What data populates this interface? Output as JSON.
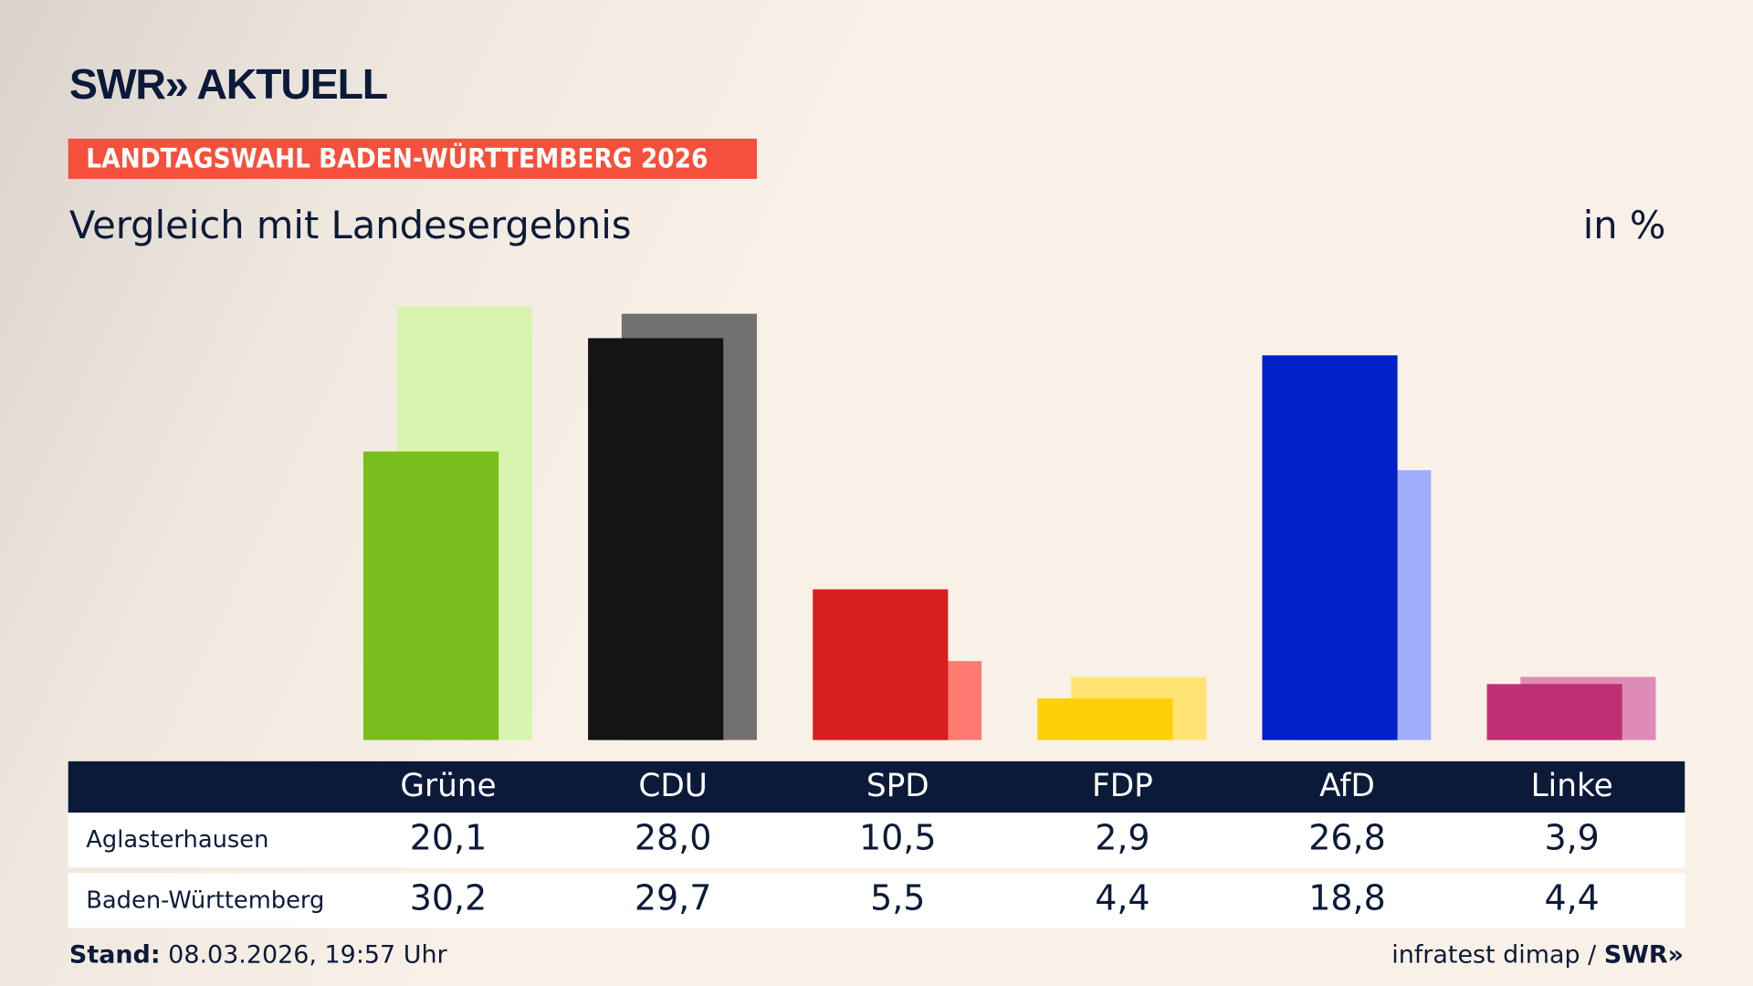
{
  "header": {
    "logo": "SWR» AKTUELL",
    "badge": "LANDTAGSWAHL BADEN-WÜRTTEMBERG 2026",
    "subtitle": "Vergleich mit Landesergebnis",
    "unit": "in %"
  },
  "chart_data": {
    "type": "bar",
    "categories": [
      "Grüne",
      "CDU",
      "SPD",
      "FDP",
      "AfD",
      "Linke"
    ],
    "series": [
      {
        "name": "Aglasterhausen",
        "values": [
          20.1,
          28.0,
          10.5,
          2.9,
          26.8,
          3.9
        ],
        "labels": [
          "20,1",
          "28,0",
          "10,5",
          "2,9",
          "26,8",
          "3,9"
        ],
        "colors": [
          "#78be1c",
          "#141414",
          "#d71f1f",
          "#ffcf0a",
          "#0021c8",
          "#be3075"
        ]
      },
      {
        "name": "Baden-Württemberg",
        "values": [
          30.2,
          29.7,
          5.5,
          4.4,
          18.8,
          4.4
        ],
        "labels": [
          "30,2",
          "29,7",
          "5,5",
          "4,4",
          "18,8",
          "4,4"
        ],
        "colors": [
          "#d7f5ae",
          "#737170",
          "#ff7a70",
          "#ffe474",
          "#a0aeff",
          "#de8bb7"
        ]
      }
    ],
    "ylim": [
      0,
      30.2
    ]
  },
  "footer": {
    "stand_label": "Stand:",
    "stand_value": " 08.03.2026, 19:57 Uhr",
    "source": "infratest dimap / ",
    "source_logo": "SWR»"
  }
}
